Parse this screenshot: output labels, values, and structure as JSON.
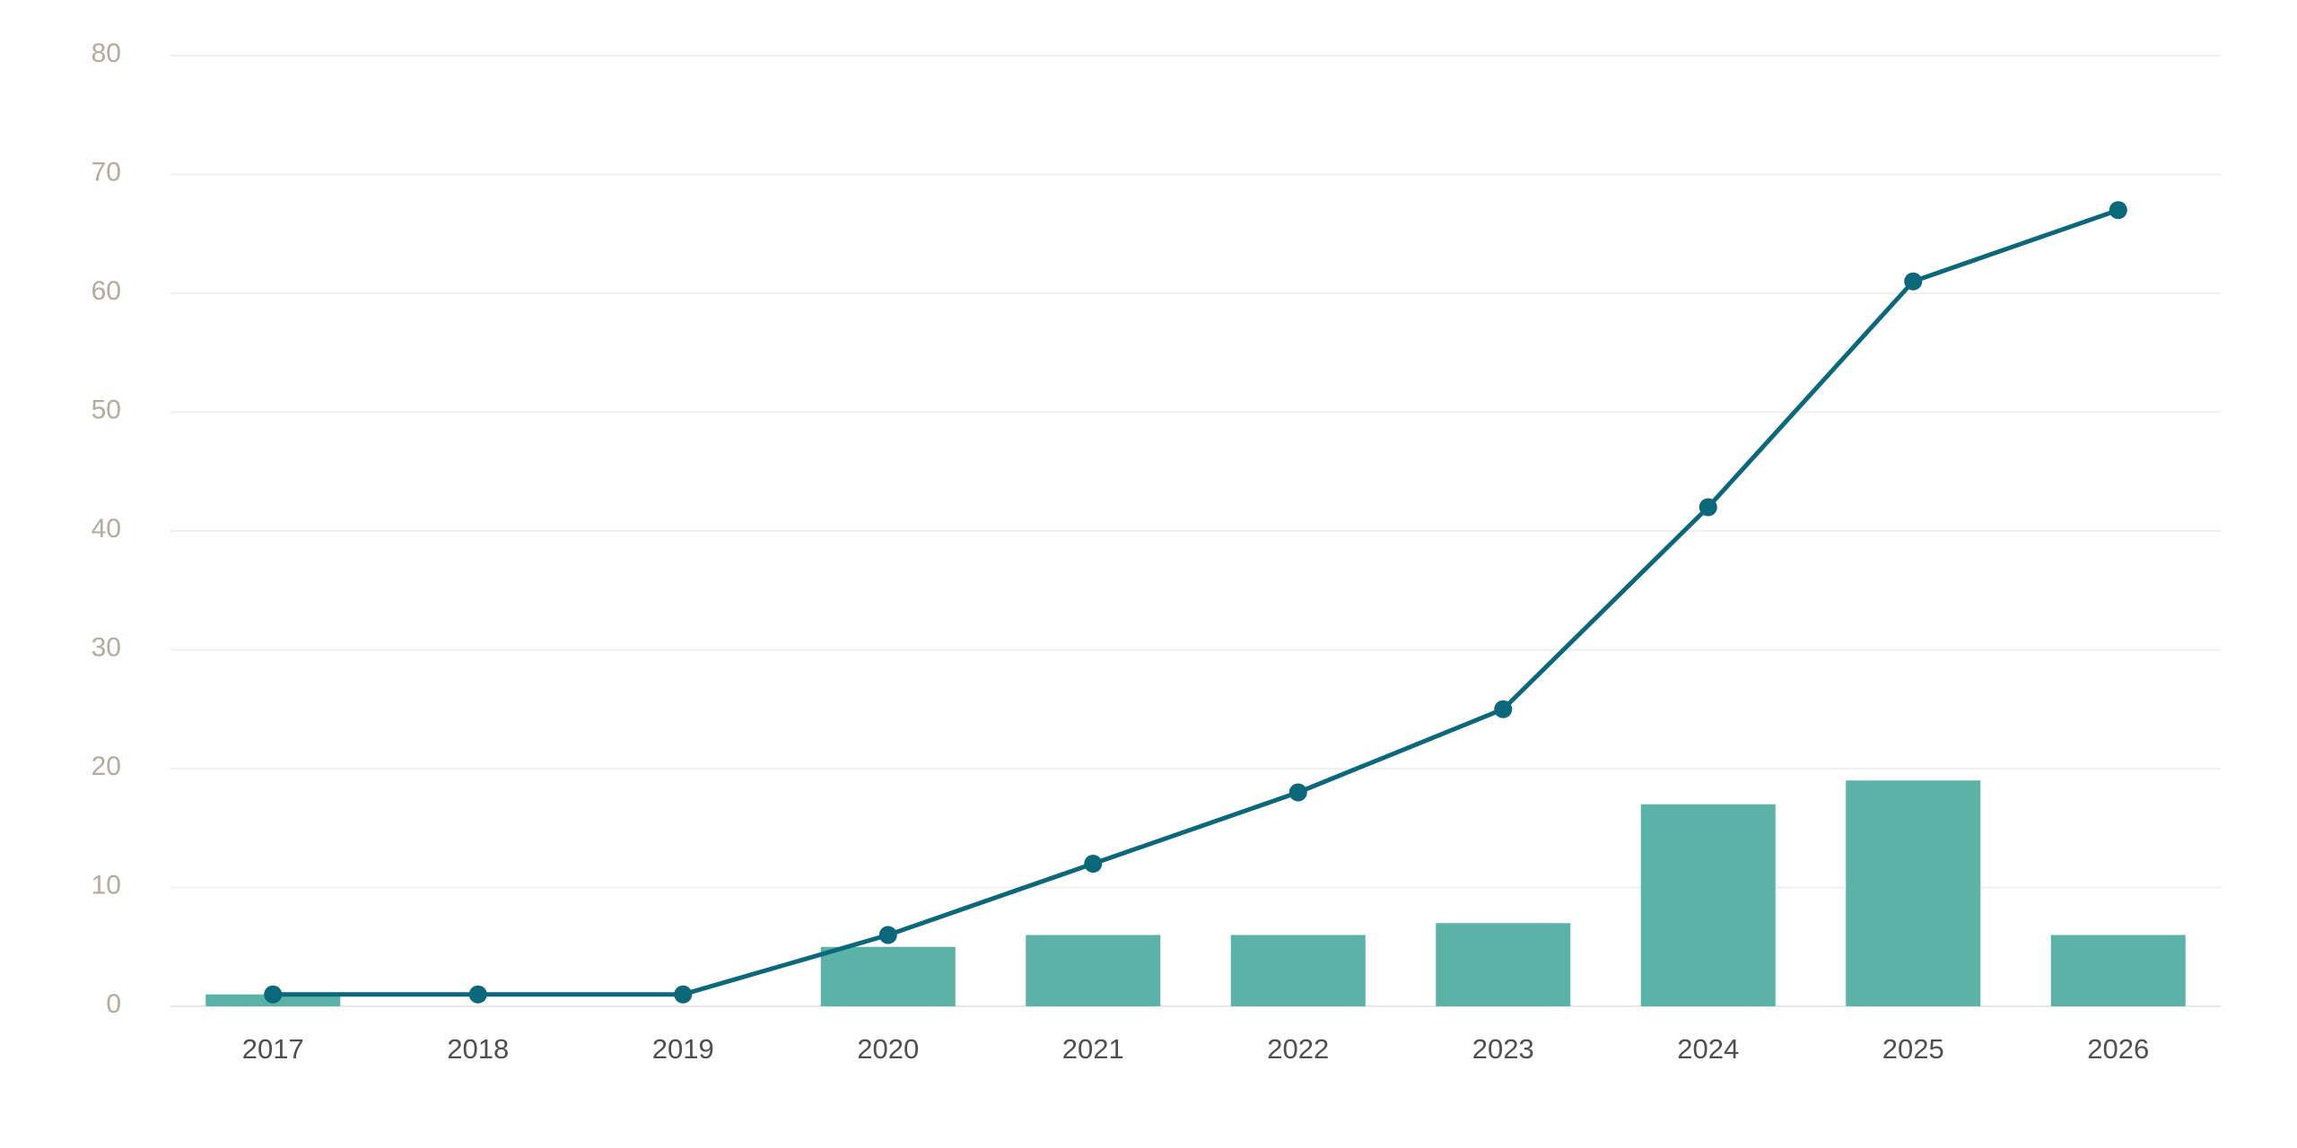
{
  "chart_data": {
    "type": "bar",
    "title": "",
    "xlabel": "",
    "ylabel": "",
    "categories": [
      "2017",
      "2018",
      "2019",
      "2020",
      "2021",
      "2022",
      "2023",
      "2024",
      "2025",
      "2026"
    ],
    "ylim": [
      0,
      80
    ],
    "yticks": [
      0,
      10,
      20,
      30,
      40,
      50,
      60,
      70,
      80
    ],
    "grid": true,
    "legend": "none",
    "series": [
      {
        "type": "bar",
        "color": "#5bb3a8",
        "values": [
          1,
          0,
          0,
          5,
          6,
          6,
          7,
          17,
          19,
          6
        ]
      },
      {
        "type": "line",
        "color": "#0b687b",
        "values": [
          1,
          1,
          1,
          6,
          12,
          18,
          25,
          42,
          61,
          67
        ]
      }
    ]
  }
}
